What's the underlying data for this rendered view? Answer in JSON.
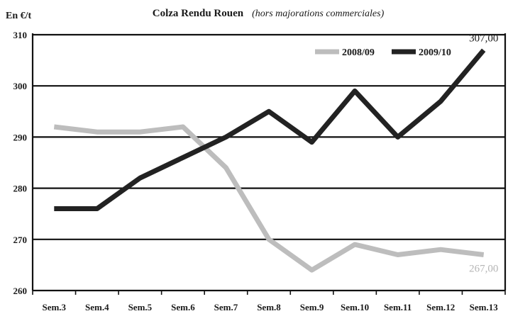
{
  "chart_data": {
    "type": "line",
    "title": "Colza Rendu Rouen",
    "subtitle": "(hors majorations commerciales)",
    "ylabel": "En €/t",
    "categories": [
      "Sem.3",
      "Sem.4",
      "Sem.5",
      "Sem.6",
      "Sem.7",
      "Sem.8",
      "Sem.9",
      "Sem.10",
      "Sem.11",
      "Sem.12",
      "Sem.13"
    ],
    "ylim": [
      260,
      310
    ],
    "yticks": [
      260,
      270,
      280,
      290,
      300,
      310
    ],
    "ytick_labels": [
      "260",
      "270",
      "280",
      "290",
      "300",
      "310"
    ],
    "grid": true,
    "legend_position": "top-right",
    "series": [
      {
        "name": "2008/09",
        "color": "#bdbdbd",
        "values": [
          292,
          291,
          291,
          292,
          284,
          270,
          264,
          269,
          267,
          268,
          267
        ],
        "end_label": "267,00"
      },
      {
        "name": "2009/10",
        "color": "#222222",
        "values": [
          276,
          276,
          282,
          286,
          290,
          295,
          289,
          299,
          290,
          297,
          307
        ],
        "end_label": "307,00"
      }
    ]
  }
}
